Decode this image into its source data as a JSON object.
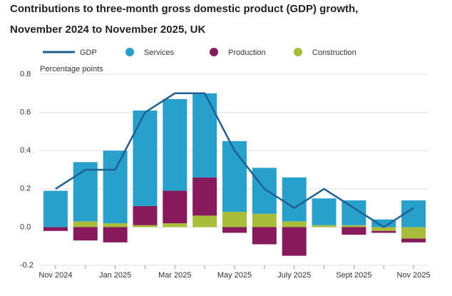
{
  "chart_data": {
    "type": "bar",
    "title": "Contributions to three-month gross domestic product (GDP) growth,",
    "subtitle": "November 2024 to November 2025, UK",
    "y_label": "Percentage points",
    "categories": [
      "Nov 2024",
      null,
      "Jan 2025",
      null,
      "Mar 2025",
      null,
      "May 2025",
      null,
      "July 2025",
      null,
      "Sept 2025",
      null,
      "Nov 2025"
    ],
    "series": [
      {
        "name": "Construction",
        "color": "#a8bd3a",
        "values": [
          0,
          0.03,
          0.02,
          0.01,
          0.02,
          0.06,
          0.08,
          0.07,
          0.03,
          0.01,
          0.01,
          -0.02,
          -0.06
        ]
      },
      {
        "name": "Production",
        "color": "#871a5b",
        "values": [
          -0.02,
          -0.07,
          -0.08,
          0.1,
          0.17,
          0.2,
          -0.03,
          -0.09,
          -0.15,
          0,
          -0.04,
          -0.01,
          -0.02
        ]
      },
      {
        "name": "Services",
        "color": "#27a0cc",
        "values": [
          0.19,
          0.31,
          0.38,
          0.5,
          0.48,
          0.44,
          0.37,
          0.24,
          0.23,
          0.14,
          0.13,
          0.04,
          0.14
        ]
      }
    ],
    "line": {
      "name": "GDP",
      "color": "#206095",
      "values": [
        0.2,
        0.3,
        0.3,
        0.6,
        0.7,
        0.7,
        0.4,
        0.2,
        0.1,
        0.2,
        0.1,
        0.0,
        0.1
      ]
    },
    "legend_order": [
      "GDP",
      "Services",
      "Production",
      "Construction"
    ],
    "ylim": [
      -0.2,
      0.8
    ],
    "yticks": [
      -0.2,
      {
        "value": 0,
        "label": "0.0"
      },
      0.2,
      0.4,
      0.6,
      0.8
    ],
    "grid": true
  }
}
